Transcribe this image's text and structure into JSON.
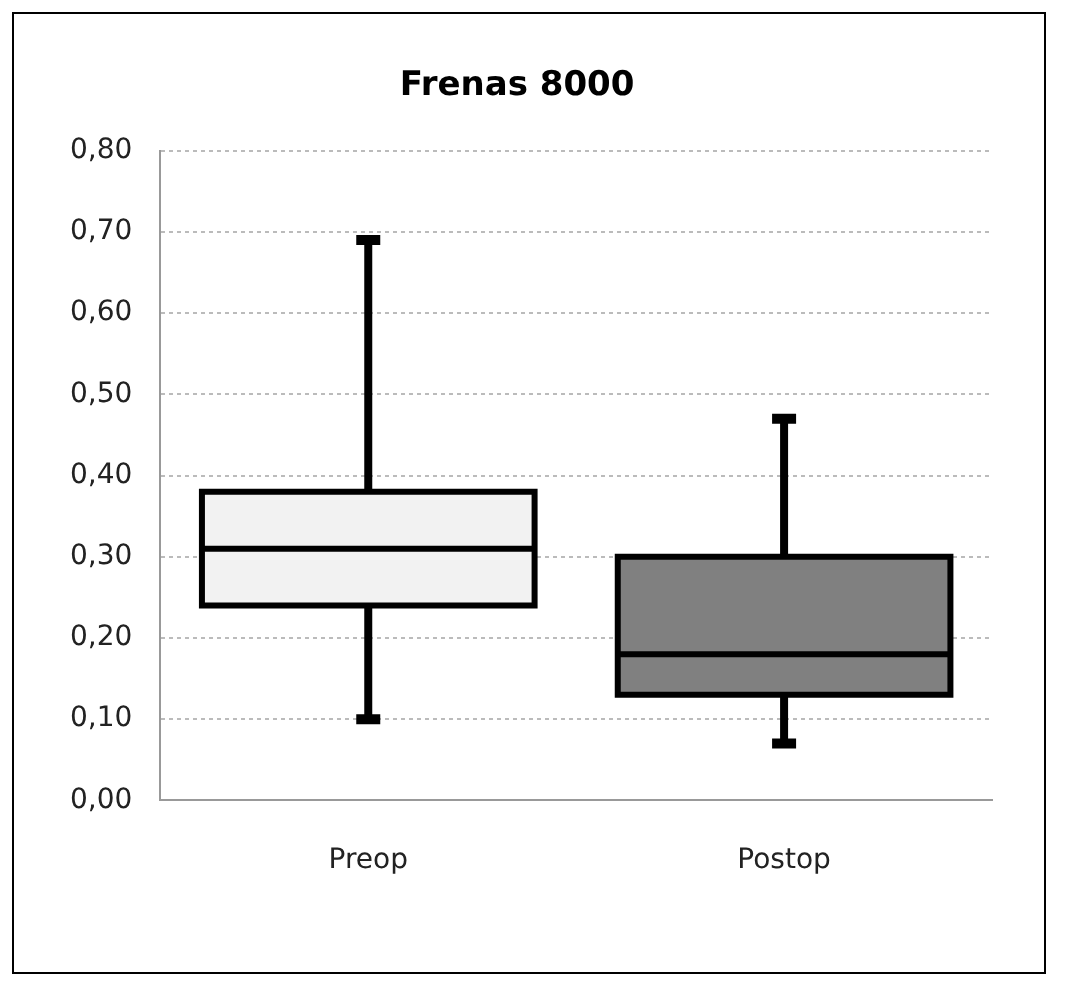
{
  "chart_data": {
    "type": "box",
    "title": "Frenas 8000",
    "categories": [
      "Preop",
      "Postop"
    ],
    "boxes": [
      {
        "low": 0.1,
        "q1": 0.24,
        "median": 0.31,
        "q3": 0.38,
        "high": 0.69
      },
      {
        "low": 0.07,
        "q1": 0.13,
        "median": 0.18,
        "q3": 0.3,
        "high": 0.47
      }
    ],
    "colors": [
      "#f2f2f2",
      "#808080"
    ],
    "ylim": [
      0,
      0.8
    ],
    "yticks": [
      {
        "value": 0,
        "label": "0,00"
      },
      {
        "value": 0.1,
        "label": "0,10"
      },
      {
        "value": 0.2,
        "label": "0,20"
      },
      {
        "value": 0.3,
        "label": "0,30"
      },
      {
        "value": 0.4,
        "label": "0,40"
      },
      {
        "value": 0.5,
        "label": "0,50"
      },
      {
        "value": 0.6,
        "label": "0,60"
      },
      {
        "value": 0.7,
        "label": "0,70"
      },
      {
        "value": 0.8,
        "label": "0,80"
      }
    ],
    "grid": "y",
    "legend": false
  }
}
